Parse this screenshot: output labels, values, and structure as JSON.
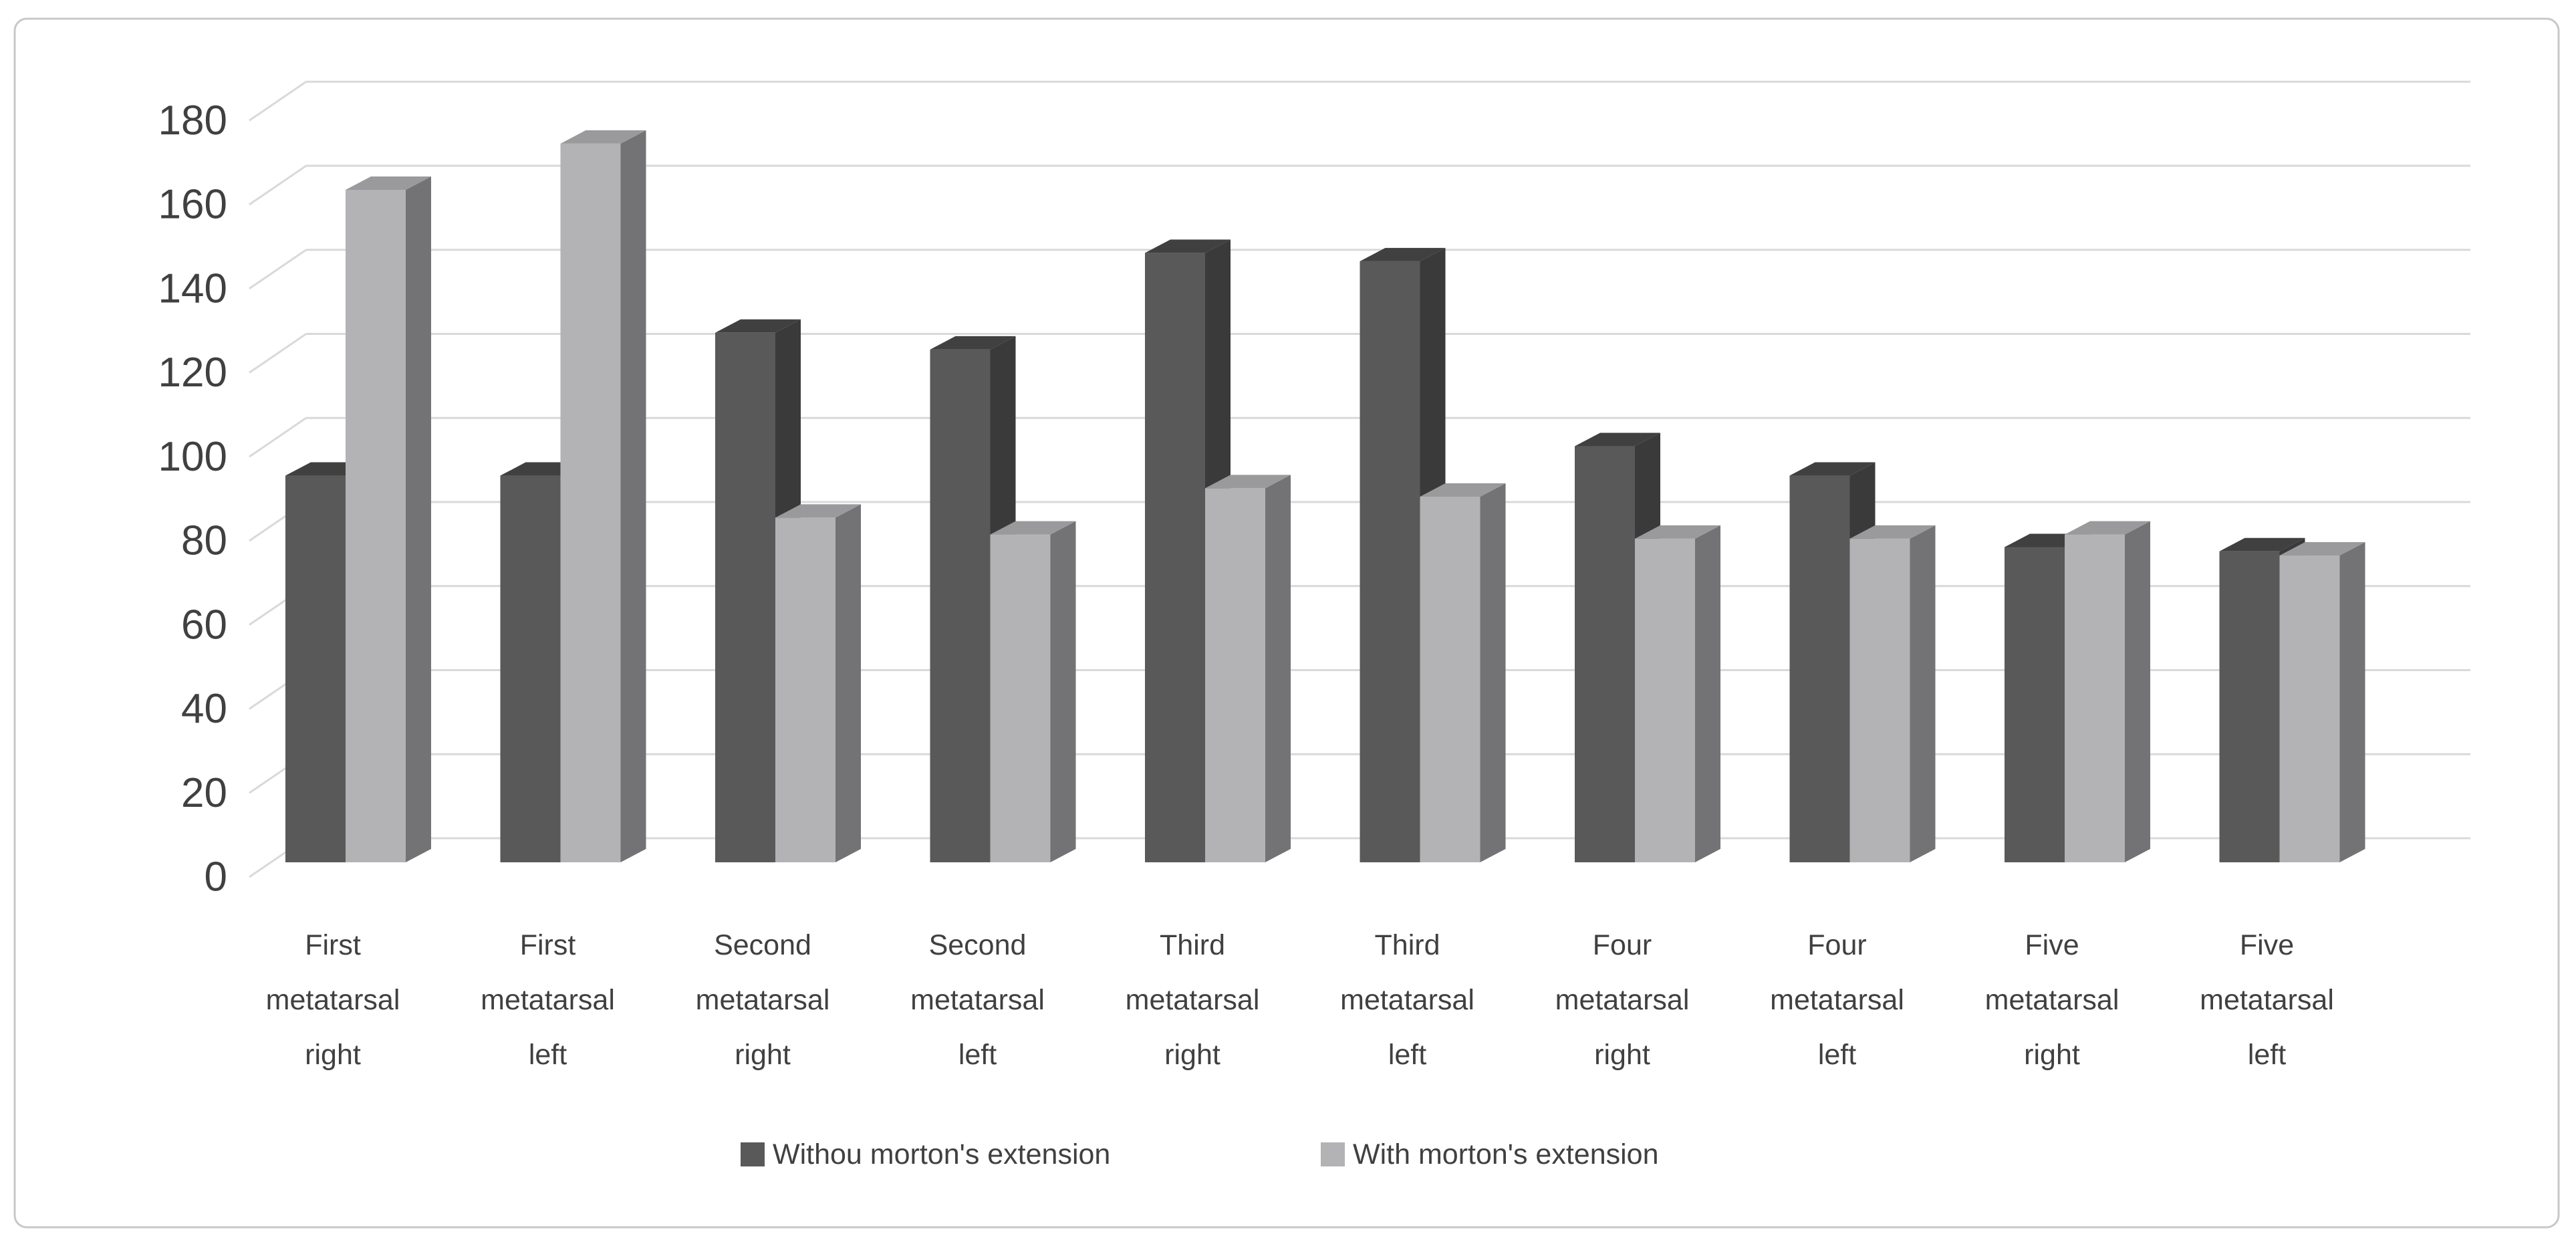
{
  "chart": {
    "card_border_color": "#c8c8c8",
    "background_color": "#ffffff",
    "grid_color": "#d9d9d9",
    "text_color": "#404040"
  },
  "chart_data": {
    "type": "bar",
    "projection": "3d-column",
    "title": "",
    "xlabel": "",
    "ylabel": "",
    "ylim": [
      0,
      180
    ],
    "yticks": [
      0,
      20,
      40,
      60,
      80,
      100,
      120,
      140,
      160,
      180
    ],
    "grid": true,
    "legend_position": "bottom",
    "categories": [
      "First metatarsal right",
      "First metatarsal left",
      "Second metatarsal right",
      "Second metatarsal left",
      "Third metatarsal right",
      "Third metatarsal left",
      "Four metatarsal right",
      "Four metatarsal left",
      "Five metatarsal right",
      "Five metatarsal left"
    ],
    "category_label_lines": [
      [
        "First",
        "metatarsal",
        "right"
      ],
      [
        "First",
        "metatarsal",
        "left"
      ],
      [
        "Second",
        "metatarsal",
        "right"
      ],
      [
        "Second",
        "metatarsal",
        "left"
      ],
      [
        "Third",
        "metatarsal",
        "right"
      ],
      [
        "Third",
        "metatarsal",
        "left"
      ],
      [
        "Four",
        "metatarsal",
        "right"
      ],
      [
        "Four",
        "metatarsal",
        "left"
      ],
      [
        "Five",
        "metatarsal",
        "right"
      ],
      [
        "Five",
        "metatarsal",
        "left"
      ]
    ],
    "series": [
      {
        "name": "Withou morton's extension",
        "color": "#595959",
        "side_color": "#3a3a3a",
        "top_color": "#404040",
        "values": [
          92,
          92,
          126,
          122,
          145,
          143,
          99,
          92,
          75,
          74
        ]
      },
      {
        "name": "With morton's extension",
        "color": "#b3b3b5",
        "side_color": "#737376",
        "top_color": "#9a9a9d",
        "values": [
          160,
          171,
          82,
          78,
          89,
          87,
          77,
          77,
          78,
          73
        ]
      }
    ]
  }
}
